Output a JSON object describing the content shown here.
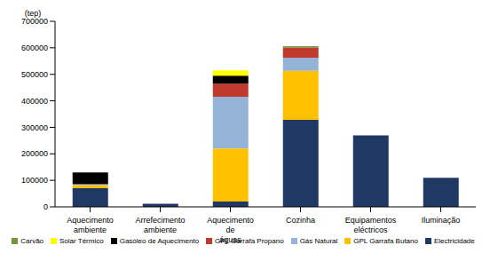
{
  "chart_data": {
    "type": "bar",
    "stacked": true,
    "y_label": "(tep)",
    "grid": false,
    "legend": "bottom",
    "categories": [
      "Aquecimento ambiente",
      "Arrefecimento ambiente",
      "Aquecimento de águas",
      "Cozinha",
      "Equipamentos eléctricos",
      "Iluminação"
    ],
    "ylim": [
      0,
      700000
    ],
    "yticks": [
      0,
      100000,
      200000,
      300000,
      400000,
      500000,
      600000,
      700000
    ],
    "series": [
      {
        "name": "Carvão",
        "color": "#77933c",
        "values": [
          0,
          0,
          0,
          5000,
          0,
          0
        ]
      },
      {
        "name": "Solar Térmico",
        "color": "#ffff00",
        "values": [
          0,
          0,
          20000,
          0,
          0,
          0
        ]
      },
      {
        "name": "Gasóleo de Aquecimento",
        "color": "#000000",
        "values": [
          45000,
          0,
          30000,
          0,
          0,
          0
        ]
      },
      {
        "name": "GPL Garrafa Propano",
        "color": "#c0392b",
        "values": [
          0,
          0,
          50000,
          38000,
          0,
          0
        ]
      },
      {
        "name": "Gás Natural",
        "color": "#95b3d7",
        "values": [
          3000,
          0,
          195000,
          50000,
          0,
          0
        ]
      },
      {
        "name": "GPL Garrafa Butano",
        "color": "#ffc000",
        "values": [
          12000,
          0,
          200000,
          185000,
          0,
          0
        ]
      },
      {
        "name": "Electricidade",
        "color": "#1f3864",
        "values": [
          70000,
          12000,
          20000,
          328000,
          270000,
          110000
        ]
      }
    ]
  }
}
